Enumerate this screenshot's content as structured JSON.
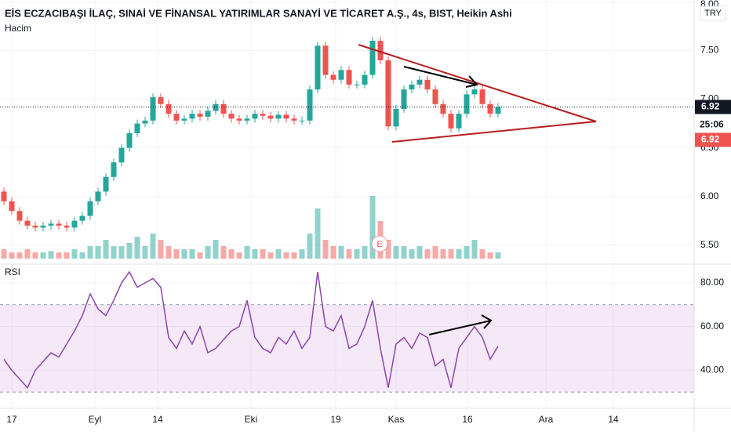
{
  "header": {
    "title": "EİS ECZACIBAŞI İLAÇ, SINAİ VE FİNANSAL YATIRIMLAR SANAYİ VE TİCARET A.Ş., 4s, BIST, Heikin Ashi",
    "volume_label": "Hacim",
    "currency": "TRY",
    "last_price": 6.92,
    "countdown": "25:06",
    "price_tag": "6.92",
    "event_marker": "E"
  },
  "chart_data": [
    {
      "type": "candlestick",
      "up_color": "#26a69a",
      "down_color": "#ef5350",
      "open": [
        6.05,
        5.95,
        5.85,
        5.75,
        5.7,
        5.68,
        5.7,
        5.72,
        5.7,
        5.68,
        5.75,
        5.8,
        5.95,
        6.05,
        6.2,
        6.35,
        6.5,
        6.65,
        6.75,
        6.78,
        7.02,
        6.95,
        6.85,
        6.78,
        6.8,
        6.85,
        6.82,
        6.88,
        6.95,
        6.85,
        6.8,
        6.78,
        6.8,
        6.85,
        6.83,
        6.8,
        6.84,
        6.8,
        6.78,
        6.78,
        7.1,
        7.55,
        7.25,
        7.2,
        7.3,
        7.15,
        7.15,
        7.25,
        7.6,
        7.4,
        6.72,
        6.9,
        7.1,
        7.15,
        7.2,
        7.1,
        6.95,
        6.85,
        6.7,
        6.85,
        7.05,
        7.1,
        6.95,
        6.85
      ],
      "high": [
        6.09,
        5.99,
        5.89,
        5.79,
        5.74,
        5.74,
        5.76,
        5.76,
        5.74,
        5.79,
        5.84,
        5.99,
        6.09,
        6.24,
        6.39,
        6.54,
        6.69,
        6.79,
        6.82,
        7.06,
        7.06,
        6.99,
        6.89,
        6.84,
        6.89,
        6.89,
        6.92,
        6.99,
        6.99,
        6.89,
        6.84,
        6.84,
        6.89,
        6.89,
        6.87,
        6.88,
        6.88,
        6.84,
        6.82,
        7.14,
        7.59,
        7.59,
        7.29,
        7.34,
        7.34,
        7.19,
        7.29,
        7.64,
        7.64,
        7.44,
        6.94,
        7.14,
        7.19,
        7.24,
        7.24,
        7.14,
        6.99,
        6.89,
        6.89,
        7.09,
        7.14,
        7.14,
        6.99,
        6.96
      ],
      "low": [
        5.91,
        5.81,
        5.71,
        5.66,
        5.64,
        5.64,
        5.66,
        5.66,
        5.64,
        5.64,
        5.71,
        5.76,
        5.91,
        6.01,
        6.16,
        6.31,
        6.46,
        6.61,
        6.71,
        6.74,
        6.91,
        6.81,
        6.74,
        6.74,
        6.76,
        6.78,
        6.78,
        6.84,
        6.81,
        6.76,
        6.74,
        6.74,
        6.76,
        6.79,
        6.76,
        6.76,
        6.76,
        6.74,
        6.74,
        6.74,
        7.06,
        7.21,
        7.16,
        7.16,
        7.11,
        7.11,
        7.11,
        7.21,
        7.36,
        6.68,
        6.68,
        6.86,
        7.06,
        7.11,
        7.06,
        6.91,
        6.81,
        6.66,
        6.66,
        6.81,
        7.01,
        6.91,
        6.81,
        6.81
      ],
      "close": [
        5.95,
        5.85,
        5.75,
        5.7,
        5.68,
        5.7,
        5.72,
        5.7,
        5.68,
        5.75,
        5.8,
        5.95,
        6.05,
        6.2,
        6.35,
        6.5,
        6.65,
        6.75,
        6.78,
        7.02,
        6.95,
        6.85,
        6.78,
        6.8,
        6.85,
        6.82,
        6.88,
        6.95,
        6.85,
        6.8,
        6.78,
        6.8,
        6.85,
        6.83,
        6.8,
        6.84,
        6.8,
        6.78,
        6.78,
        7.1,
        7.55,
        7.25,
        7.2,
        7.3,
        7.15,
        7.15,
        7.25,
        7.6,
        7.4,
        6.72,
        6.9,
        7.1,
        7.15,
        7.2,
        7.1,
        6.95,
        6.85,
        6.7,
        6.85,
        7.05,
        7.1,
        6.95,
        6.85,
        6.92
      ],
      "volume": [
        1.5,
        1,
        1,
        1.5,
        1,
        1,
        1.2,
        1,
        1,
        1.5,
        1,
        2,
        2,
        3,
        2,
        2,
        2.5,
        3.5,
        2,
        4,
        3,
        2,
        1.5,
        1.5,
        1.5,
        1,
        2,
        3,
        2,
        1.5,
        1,
        2,
        1.5,
        1.5,
        1,
        1.5,
        1,
        1,
        1.5,
        4,
        8,
        3,
        2,
        2,
        1.5,
        1.5,
        2,
        10,
        6,
        3,
        2,
        2,
        1.5,
        2,
        1.5,
        2,
        1.5,
        1.5,
        1.5,
        2,
        3,
        1.5,
        1,
        1
      ],
      "xlim": [
        -0.5,
        88
      ],
      "xticks": [
        {
          "value": 1.0,
          "label": "17"
        },
        {
          "value": 11.6,
          "label": "Eyl"
        },
        {
          "value": 19.6,
          "label": "14"
        },
        {
          "value": 31.5,
          "label": "Eki"
        },
        {
          "value": 42.3,
          "label": "19"
        },
        {
          "value": 50,
          "label": "Kas"
        },
        {
          "value": 59.1,
          "label": "16"
        },
        {
          "value": 69.1,
          "label": "Ara"
        },
        {
          "value": 77.7,
          "label": "14"
        }
      ],
      "ylim": [
        5.32,
        8.02
      ],
      "yticks": [
        {
          "value": 5.5,
          "label": "5.50"
        },
        {
          "value": 6,
          "label": "6.00"
        },
        {
          "value": 6.5,
          "label": "6.50"
        },
        {
          "value": 7,
          "label": "7.00"
        },
        {
          "value": 7.5,
          "label": "7.50"
        },
        {
          "value": 8,
          "label": "8.00"
        }
      ],
      "grid": true
    },
    {
      "type": "line",
      "title": "RSI",
      "color": "#8e44ad",
      "values": [
        45,
        40,
        36,
        32,
        40,
        44,
        48,
        46,
        52,
        58,
        65,
        75,
        68,
        65,
        72,
        80,
        85,
        78,
        80,
        82,
        78,
        55,
        50,
        58,
        52,
        60,
        48,
        50,
        54,
        58,
        60,
        72,
        55,
        50,
        48,
        55,
        52,
        58,
        50,
        55,
        85,
        60,
        58,
        65,
        50,
        52,
        60,
        72,
        50,
        32,
        52,
        55,
        50,
        57,
        55,
        42,
        45,
        32,
        50,
        55,
        60,
        55,
        45,
        51
      ],
      "band": [
        30,
        70
      ],
      "band_color": "#9c27b0",
      "ylim": [
        22.9,
        87.5
      ],
      "yticks": [
        {
          "value": 40,
          "label": "40.00"
        },
        {
          "value": 60,
          "label": "60.00"
        },
        {
          "value": 80,
          "label": "80.00"
        }
      ]
    }
  ]
}
